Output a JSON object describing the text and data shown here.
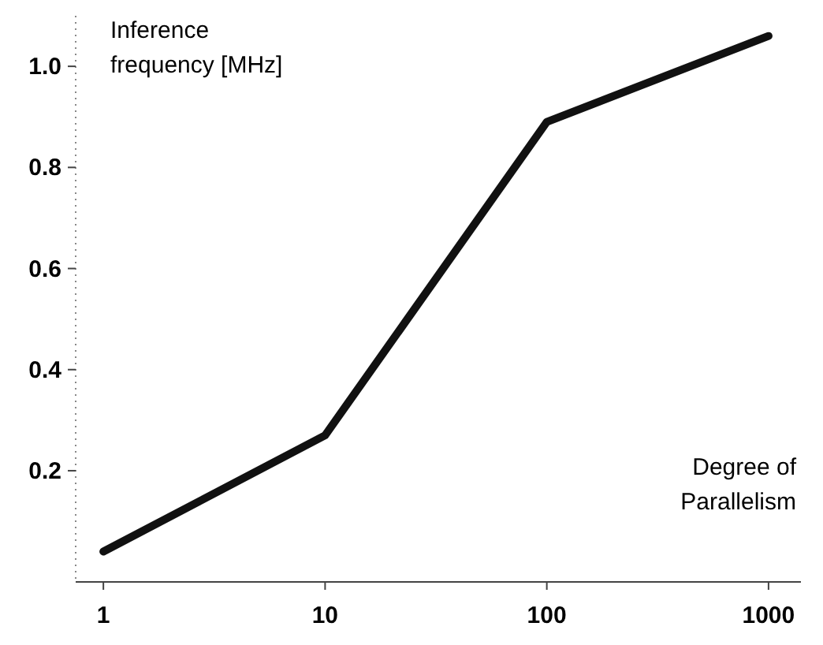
{
  "chart_data": {
    "type": "line",
    "xlabel": "Degree of Parallelism",
    "ylabel": "Inference frequency [MHz]",
    "log": "x",
    "x": [
      1,
      10,
      100,
      1000
    ],
    "series": [
      {
        "color": "#111111",
        "values": [
          0.04,
          0.27,
          0.89,
          1.06
        ]
      }
    ],
    "xlim": [
      0.75,
      1400
    ],
    "xticks": [
      1,
      10,
      100,
      1000
    ],
    "ylim": [
      -0.02,
      1.1
    ],
    "yticks": [
      0.2,
      0.4,
      0.6,
      0.8,
      {
        "value": 1,
        "label": "1.0"
      }
    ],
    "grid": false,
    "marker": "none",
    "line_style": "solid"
  }
}
